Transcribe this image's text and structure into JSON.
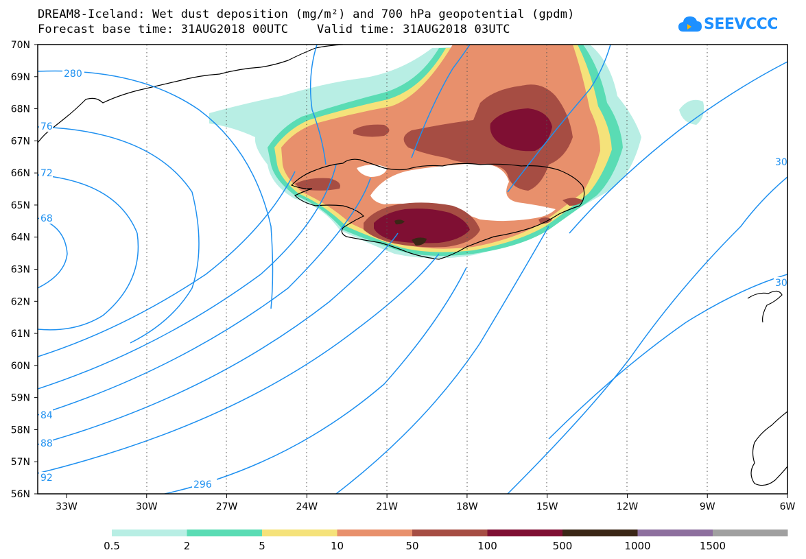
{
  "title": {
    "line1": "DREAM8-Iceland: Wet dust deposition (mg/m²) and 700 hPa geopotential (gpdm)",
    "line2": "Forecast base time: 31AUG2018 00UTC    Valid time: 31AUG2018 03UTC"
  },
  "logo": {
    "text": "SEEVCCC",
    "icon": "cloud-icon"
  },
  "map": {
    "lat_labels": [
      "70N",
      "69N",
      "68N",
      "67N",
      "66N",
      "65N",
      "64N",
      "63N",
      "62N",
      "61N",
      "60N",
      "59N",
      "58N",
      "57N",
      "56N"
    ],
    "lon_labels": [
      "33W",
      "30W",
      "27W",
      "24W",
      "21W",
      "18W",
      "15W",
      "12W",
      "9W",
      "6W"
    ],
    "contour_labels": [
      "280",
      "76",
      "72",
      "68",
      "84",
      "88",
      "92",
      "296",
      "30",
      "30"
    ]
  },
  "legend": {
    "labels": [
      "0.5",
      "2",
      "5",
      "10",
      "50",
      "100",
      "500",
      "1000",
      "1500"
    ],
    "colors": [
      "#b8eee4",
      "#5adcb4",
      "#f5e27a",
      "#e8906c",
      "#a64d43",
      "#7f0f33",
      "#3a2616",
      "#8d6f9e",
      "#a0a0a0"
    ]
  },
  "colors": {
    "contour": "#1e90f0",
    "coast": "#000000"
  }
}
